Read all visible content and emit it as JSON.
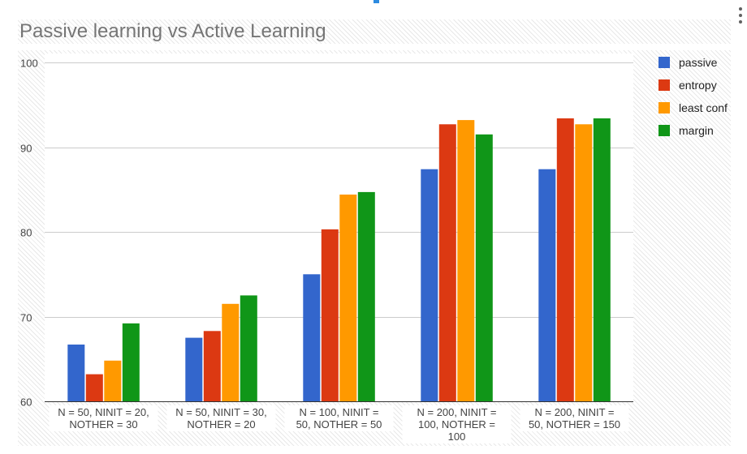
{
  "chart_data": {
    "type": "bar",
    "title": "Passive learning vs Active Learning",
    "categories": [
      [
        "N = 50, NINIT = 20,",
        "NOTHER = 30"
      ],
      [
        "N = 50, NINIT = 30,",
        "NOTHER = 20"
      ],
      [
        "N = 100, NINIT =",
        "50, NOTHER = 50"
      ],
      [
        "N = 200, NINIT =",
        "100, NOTHER =",
        "100"
      ],
      [
        "N = 200, NINIT =",
        "50, NOTHER = 150"
      ]
    ],
    "series": [
      {
        "name": "passive",
        "color": "#3366cc",
        "values": [
          66.7,
          67.5,
          75.0,
          87.4,
          87.4
        ]
      },
      {
        "name": "entropy",
        "color": "#dc3912",
        "values": [
          63.2,
          68.3,
          80.3,
          92.7,
          93.4
        ]
      },
      {
        "name": "least conf",
        "color": "#ff9900",
        "values": [
          64.8,
          71.5,
          84.4,
          93.2,
          92.7
        ]
      },
      {
        "name": "margin",
        "color": "#109618",
        "values": [
          69.2,
          72.5,
          84.7,
          91.5,
          93.4
        ]
      }
    ],
    "xlabel": "",
    "ylabel": "",
    "ylim": [
      60,
      100
    ],
    "yticks": [
      60,
      70,
      80,
      90,
      100
    ],
    "grid": true,
    "legend_position": "right"
  },
  "menu_icon": "more-vert-icon"
}
